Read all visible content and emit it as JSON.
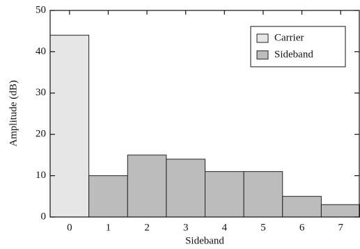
{
  "chart_data": {
    "type": "bar",
    "categories": [
      "0",
      "1",
      "2",
      "3",
      "4",
      "5",
      "6",
      "7"
    ],
    "series": [
      {
        "name": "Carrier",
        "color": "#e6e6e6",
        "values": [
          44,
          null,
          null,
          null,
          null,
          null,
          null,
          null
        ]
      },
      {
        "name": "Sideband",
        "color": "#bcbcbc",
        "values": [
          null,
          10,
          15,
          14,
          11,
          11,
          5,
          3
        ]
      }
    ],
    "xlabel": "Sideband",
    "ylabel": "Amplitude (dB)",
    "ylim": [
      0,
      50
    ],
    "yticks": [
      0,
      10,
      20,
      30,
      40,
      50
    ],
    "legend": "upper right",
    "grid": false
  }
}
